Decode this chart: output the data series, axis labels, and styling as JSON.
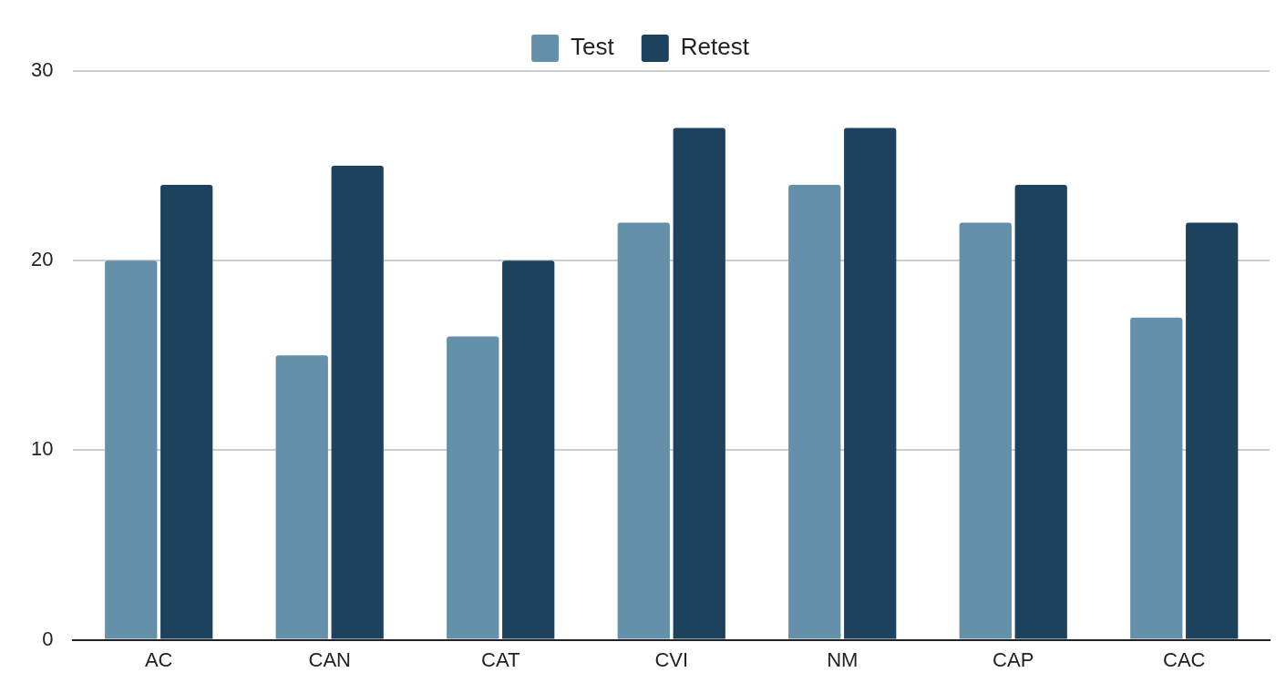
{
  "chart_data": {
    "type": "bar",
    "categories": [
      "AC",
      "CAN",
      "CAT",
      "CVI",
      "NM",
      "CAP",
      "CAC"
    ],
    "series": [
      {
        "name": "Test",
        "color": "#6490aa",
        "values": [
          20,
          15,
          16,
          22,
          24,
          22,
          17
        ]
      },
      {
        "name": "Retest",
        "color": "#1d425e",
        "values": [
          24,
          25,
          20,
          27,
          27,
          24,
          22
        ]
      }
    ],
    "ylim": [
      0,
      30
    ],
    "yticks": [
      0,
      10,
      20,
      30
    ],
    "grid": "y",
    "legend": "top"
  }
}
